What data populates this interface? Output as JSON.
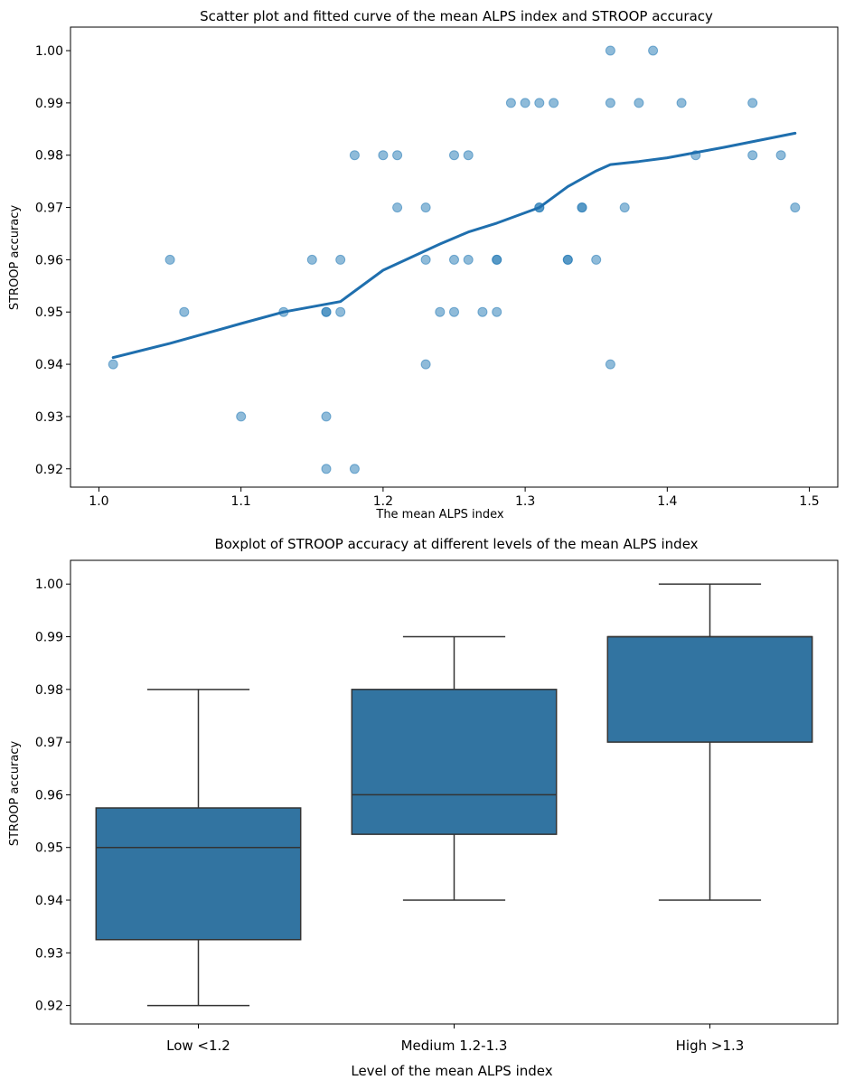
{
  "chart_data": [
    {
      "type": "scatter",
      "title": "Scatter plot and fitted curve of the mean ALPS index and STROOP accuracy",
      "xlabel": "The mean ALPS index",
      "ylabel": "STROOP accuracy",
      "xlim": [
        0.98,
        1.52
      ],
      "ylim": [
        0.9165,
        1.0045
      ],
      "xticks": [
        1.0,
        1.1,
        1.2,
        1.3,
        1.4,
        1.5
      ],
      "xtick_labels": [
        "1.0",
        "1.1",
        "1.2",
        "1.3",
        "1.4",
        "1.5"
      ],
      "yticks": [
        0.92,
        0.93,
        0.94,
        0.95,
        0.96,
        0.97,
        0.98,
        0.99,
        1.0
      ],
      "ytick_labels": [
        "0.92",
        "0.93",
        "0.94",
        "0.95",
        "0.96",
        "0.97",
        "0.98",
        "0.99",
        "1.00"
      ],
      "point_color": "#1f77b4",
      "line_color": "#1f6fae",
      "points": [
        [
          1.01,
          0.94
        ],
        [
          1.05,
          0.96
        ],
        [
          1.06,
          0.95
        ],
        [
          1.1,
          0.93
        ],
        [
          1.13,
          0.95
        ],
        [
          1.15,
          0.96
        ],
        [
          1.16,
          0.95
        ],
        [
          1.16,
          0.95
        ],
        [
          1.16,
          0.93
        ],
        [
          1.16,
          0.92
        ],
        [
          1.17,
          0.96
        ],
        [
          1.17,
          0.95
        ],
        [
          1.18,
          0.98
        ],
        [
          1.18,
          0.92
        ],
        [
          1.2,
          0.98
        ],
        [
          1.21,
          0.98
        ],
        [
          1.21,
          0.97
        ],
        [
          1.23,
          0.97
        ],
        [
          1.23,
          0.96
        ],
        [
          1.23,
          0.94
        ],
        [
          1.24,
          0.95
        ],
        [
          1.25,
          0.98
        ],
        [
          1.25,
          0.96
        ],
        [
          1.25,
          0.95
        ],
        [
          1.26,
          0.98
        ],
        [
          1.26,
          0.96
        ],
        [
          1.27,
          0.95
        ],
        [
          1.28,
          0.96
        ],
        [
          1.28,
          0.96
        ],
        [
          1.28,
          0.95
        ],
        [
          1.29,
          0.99
        ],
        [
          1.3,
          0.99
        ],
        [
          1.31,
          0.99
        ],
        [
          1.31,
          0.97
        ],
        [
          1.31,
          0.97
        ],
        [
          1.32,
          0.99
        ],
        [
          1.33,
          0.96
        ],
        [
          1.33,
          0.96
        ],
        [
          1.34,
          0.97
        ],
        [
          1.34,
          0.97
        ],
        [
          1.35,
          0.96
        ],
        [
          1.36,
          1.0
        ],
        [
          1.36,
          0.99
        ],
        [
          1.36,
          0.94
        ],
        [
          1.37,
          0.97
        ],
        [
          1.38,
          0.99
        ],
        [
          1.39,
          1.0
        ],
        [
          1.41,
          0.99
        ],
        [
          1.42,
          0.98
        ],
        [
          1.46,
          0.99
        ],
        [
          1.46,
          0.98
        ],
        [
          1.48,
          0.98
        ],
        [
          1.49,
          0.97
        ]
      ],
      "fitted_curve": [
        [
          1.01,
          0.9413
        ],
        [
          1.05,
          0.944
        ],
        [
          1.1,
          0.9478
        ],
        [
          1.13,
          0.95
        ],
        [
          1.17,
          0.952
        ],
        [
          1.2,
          0.958
        ],
        [
          1.24,
          0.963
        ],
        [
          1.26,
          0.9653
        ],
        [
          1.28,
          0.967
        ],
        [
          1.31,
          0.97
        ],
        [
          1.33,
          0.974
        ],
        [
          1.35,
          0.977
        ],
        [
          1.36,
          0.9782
        ],
        [
          1.38,
          0.9788
        ],
        [
          1.4,
          0.9795
        ],
        [
          1.44,
          0.9815
        ],
        [
          1.49,
          0.9842
        ]
      ]
    },
    {
      "type": "box",
      "title": "Boxplot of STROOP accuracy at different levels of the mean ALPS index",
      "xlabel": "Level of the mean ALPS index",
      "ylabel": "STROOP accuracy",
      "ylim": [
        0.9165,
        1.0045
      ],
      "yticks": [
        0.92,
        0.93,
        0.94,
        0.95,
        0.96,
        0.97,
        0.98,
        0.99,
        1.0
      ],
      "ytick_labels": [
        "0.92",
        "0.93",
        "0.94",
        "0.95",
        "0.96",
        "0.97",
        "0.98",
        "0.99",
        "1.00"
      ],
      "box_color": "#3274a1",
      "categories": [
        "Low  <1.2",
        "Medium 1.2-1.3",
        "High  >1.3"
      ],
      "boxes": [
        {
          "whisker_low": 0.92,
          "q1": 0.9325,
          "median": 0.95,
          "q3": 0.9575,
          "whisker_high": 0.98
        },
        {
          "whisker_low": 0.94,
          "q1": 0.9525,
          "median": 0.96,
          "q3": 0.98,
          "whisker_high": 0.99
        },
        {
          "whisker_low": 0.94,
          "q1": 0.97,
          "median": 0.99,
          "q3": 0.99,
          "whisker_high": 1.0
        }
      ]
    }
  ]
}
